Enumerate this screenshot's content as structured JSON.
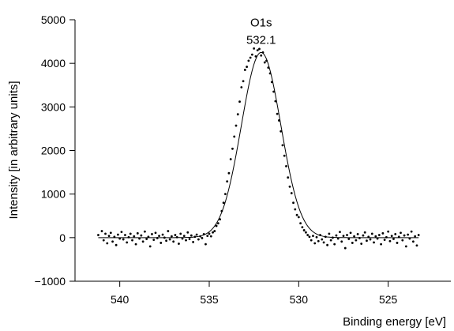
{
  "chart_data": {
    "type": "scatter",
    "title": "",
    "xlabel": "Binding energy [eV]",
    "ylabel": "Intensity [in arbitrary units]",
    "x_axis_reversed": true,
    "xlim": [
      542.5,
      521.5
    ],
    "ylim": [
      -1000,
      5000
    ],
    "x_ticks": [
      540,
      535,
      530,
      525
    ],
    "x_tick_labels": [
      "540",
      "535",
      "530",
      "525"
    ],
    "y_ticks": [
      -1000,
      0,
      1000,
      2000,
      3000,
      4000,
      5000
    ],
    "y_tick_labels": [
      "−1000",
      "0",
      "1000",
      "2000",
      "3000",
      "4000",
      "5000"
    ],
    "grid": false,
    "legend": "none",
    "annotations": [
      {
        "text": "O1s",
        "x": 532.1,
        "y": 4850
      },
      {
        "text": "532.1",
        "x": 532.1,
        "y": 4450
      }
    ],
    "fit_curve": {
      "model": "gaussian",
      "center": 532.1,
      "amplitude": 4250,
      "fwhm": 2.6,
      "baseline": 0,
      "x_range": [
        541.2,
        523.3
      ]
    },
    "scatter_points": [
      [
        541.2,
        60
      ],
      [
        541.0,
        150
      ],
      [
        540.9,
        -60
      ],
      [
        540.8,
        90
      ],
      [
        540.7,
        -130
      ],
      [
        540.6,
        40
      ],
      [
        540.5,
        110
      ],
      [
        540.4,
        -90
      ],
      [
        540.3,
        20
      ],
      [
        540.2,
        -170
      ],
      [
        540.1,
        70
      ],
      [
        540.0,
        -20
      ],
      [
        539.9,
        130
      ],
      [
        539.8,
        -40
      ],
      [
        539.7,
        60
      ],
      [
        539.6,
        -110
      ],
      [
        539.5,
        10
      ],
      [
        539.4,
        90
      ],
      [
        539.3,
        -60
      ],
      [
        539.2,
        30
      ],
      [
        539.1,
        -150
      ],
      [
        539.0,
        100
      ],
      [
        538.9,
        -20
      ],
      [
        538.8,
        50
      ],
      [
        538.7,
        -90
      ],
      [
        538.6,
        140
      ],
      [
        538.5,
        -30
      ],
      [
        538.4,
        20
      ],
      [
        538.3,
        -200
      ],
      [
        538.2,
        80
      ],
      [
        538.1,
        -50
      ],
      [
        538.0,
        110
      ],
      [
        537.9,
        -10
      ],
      [
        537.8,
        40
      ],
      [
        537.7,
        -120
      ],
      [
        537.6,
        70
      ],
      [
        537.5,
        0
      ],
      [
        537.4,
        -70
      ],
      [
        537.3,
        150
      ],
      [
        537.2,
        -40
      ],
      [
        537.1,
        30
      ],
      [
        537.0,
        -90
      ],
      [
        536.9,
        60
      ],
      [
        536.8,
        10
      ],
      [
        536.7,
        -140
      ],
      [
        536.6,
        90
      ],
      [
        536.5,
        -20
      ],
      [
        536.4,
        40
      ],
      [
        536.3,
        -60
      ],
      [
        536.2,
        120
      ],
      [
        536.1,
        -30
      ],
      [
        536.0,
        50
      ],
      [
        535.9,
        -100
      ],
      [
        535.8,
        20
      ],
      [
        535.7,
        70
      ],
      [
        535.6,
        -40
      ],
      [
        535.5,
        30
      ],
      [
        535.4,
        -10
      ],
      [
        535.3,
        80
      ],
      [
        535.2,
        -150
      ],
      [
        535.1,
        40
      ],
      [
        535.0,
        90
      ],
      [
        534.9,
        30
      ],
      [
        534.8,
        120
      ],
      [
        534.7,
        150
      ],
      [
        534.6,
        270
      ],
      [
        534.5,
        330
      ],
      [
        534.4,
        420
      ],
      [
        534.3,
        610
      ],
      [
        534.2,
        800
      ],
      [
        534.1,
        1000
      ],
      [
        534.0,
        1290
      ],
      [
        533.9,
        1480
      ],
      [
        533.8,
        1800
      ],
      [
        533.7,
        2040
      ],
      [
        533.6,
        2320
      ],
      [
        533.5,
        2570
      ],
      [
        533.4,
        2830
      ],
      [
        533.3,
        3120
      ],
      [
        533.2,
        3450
      ],
      [
        533.1,
        3590
      ],
      [
        533.0,
        3850
      ],
      [
        532.9,
        3920
      ],
      [
        532.8,
        4060
      ],
      [
        532.7,
        4130
      ],
      [
        532.6,
        4200
      ],
      [
        532.5,
        4340
      ],
      [
        532.4,
        4160
      ],
      [
        532.3,
        4300
      ],
      [
        532.2,
        4330
      ],
      [
        532.1,
        4180
      ],
      [
        532.0,
        4250
      ],
      [
        531.9,
        4020
      ],
      [
        531.8,
        4060
      ],
      [
        531.7,
        3900
      ],
      [
        531.6,
        3770
      ],
      [
        531.5,
        3570
      ],
      [
        531.4,
        3350
      ],
      [
        531.3,
        3130
      ],
      [
        531.2,
        2840
      ],
      [
        531.1,
        2690
      ],
      [
        531.0,
        2440
      ],
      [
        530.9,
        2120
      ],
      [
        530.8,
        1880
      ],
      [
        530.7,
        1640
      ],
      [
        530.6,
        1380
      ],
      [
        530.5,
        1170
      ],
      [
        530.4,
        1020
      ],
      [
        530.3,
        800
      ],
      [
        530.2,
        650
      ],
      [
        530.1,
        520
      ],
      [
        530.0,
        470
      ],
      [
        529.9,
        330
      ],
      [
        529.8,
        240
      ],
      [
        529.7,
        170
      ],
      [
        529.6,
        120
      ],
      [
        529.5,
        60
      ],
      [
        529.4,
        20
      ],
      [
        529.3,
        -60
      ],
      [
        529.2,
        40
      ],
      [
        529.1,
        -130
      ],
      [
        529.0,
        10
      ],
      [
        528.9,
        -80
      ],
      [
        528.8,
        60
      ],
      [
        528.7,
        -40
      ],
      [
        528.6,
        -110
      ],
      [
        528.5,
        20
      ],
      [
        528.4,
        -170
      ],
      [
        528.3,
        90
      ],
      [
        528.2,
        -60
      ],
      [
        528.1,
        0
      ],
      [
        528.0,
        -150
      ],
      [
        527.9,
        50
      ],
      [
        527.8,
        -20
      ],
      [
        527.7,
        130
      ],
      [
        527.6,
        -90
      ],
      [
        527.5,
        40
      ],
      [
        527.4,
        -240
      ],
      [
        527.3,
        60
      ],
      [
        527.2,
        -30
      ],
      [
        527.1,
        110
      ],
      [
        527.0,
        -120
      ],
      [
        526.9,
        30
      ],
      [
        526.8,
        -60
      ],
      [
        526.7,
        80
      ],
      [
        526.6,
        -10
      ],
      [
        526.5,
        -140
      ],
      [
        526.4,
        50
      ],
      [
        526.3,
        120
      ],
      [
        526.2,
        -70
      ],
      [
        526.1,
        20
      ],
      [
        526.0,
        -40
      ],
      [
        525.9,
        90
      ],
      [
        525.8,
        -110
      ],
      [
        525.7,
        30
      ],
      [
        525.6,
        -20
      ],
      [
        525.5,
        60
      ],
      [
        525.4,
        -150
      ],
      [
        525.3,
        100
      ],
      [
        525.2,
        -50
      ],
      [
        525.1,
        10
      ],
      [
        525.0,
        140
      ],
      [
        524.9,
        -80
      ],
      [
        524.8,
        40
      ],
      [
        524.7,
        -30
      ],
      [
        524.6,
        80
      ],
      [
        524.5,
        -120
      ],
      [
        524.4,
        20
      ],
      [
        524.3,
        110
      ],
      [
        524.2,
        -60
      ],
      [
        524.1,
        50
      ],
      [
        524.0,
        -200
      ],
      [
        523.9,
        70
      ],
      [
        523.8,
        -20
      ],
      [
        523.7,
        140
      ],
      [
        523.6,
        -90
      ],
      [
        523.5,
        30
      ],
      [
        523.4,
        -180
      ],
      [
        523.3,
        60
      ]
    ],
    "colors": {
      "points": "#000000",
      "curve": "#000000",
      "axes": "#000000"
    }
  }
}
